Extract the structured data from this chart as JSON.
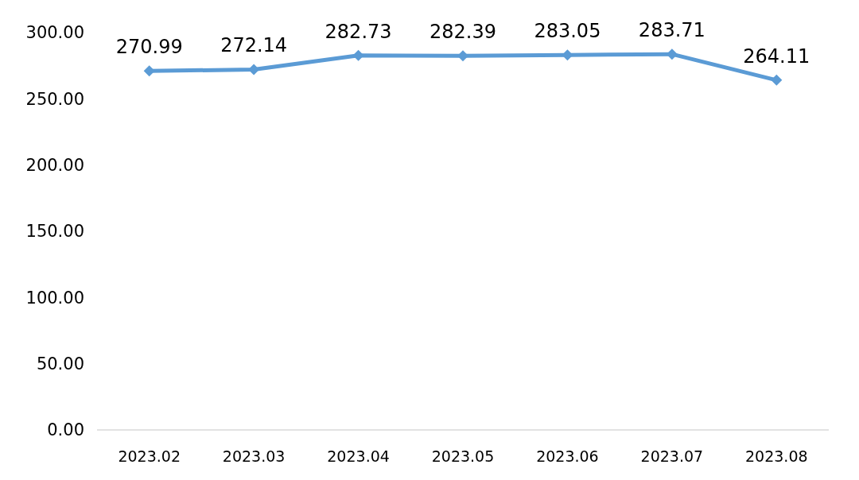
{
  "chart_data": {
    "type": "line",
    "categories": [
      "2023.02",
      "2023.03",
      "2023.04",
      "2023.05",
      "2023.06",
      "2023.07",
      "2023.08"
    ],
    "series": [
      {
        "color": "#5b9bd5",
        "values": [
          270.99,
          272.14,
          282.73,
          282.39,
          283.05,
          283.71,
          264.11
        ]
      }
    ],
    "ylim": [
      0,
      300
    ],
    "yticks": [
      {
        "value": 0,
        "label": "0.00"
      },
      {
        "value": 50,
        "label": "50.00"
      },
      {
        "value": 100,
        "label": "100.00"
      },
      {
        "value": 150,
        "label": "150.00"
      },
      {
        "value": 200,
        "label": "200.00"
      },
      {
        "value": 250,
        "label": "250.00"
      },
      {
        "value": 300,
        "label": "300.00"
      }
    ],
    "marker": "diamond",
    "line_style": "solid",
    "data_labels": true,
    "grid": false
  }
}
